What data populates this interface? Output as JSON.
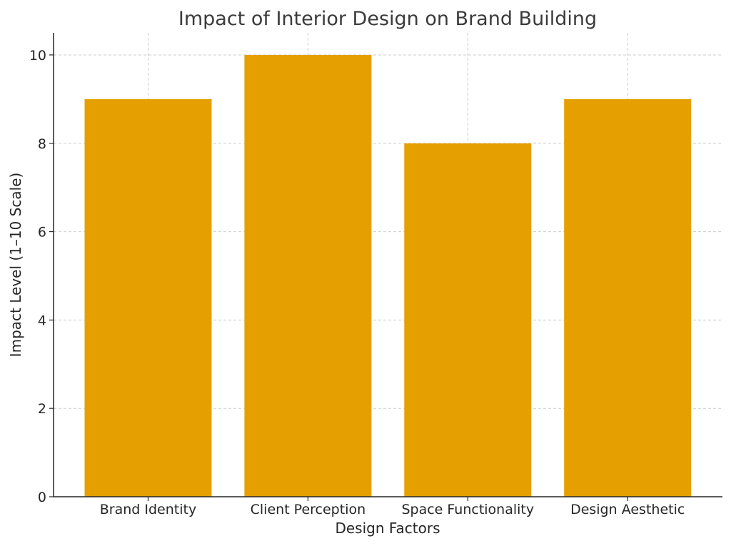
{
  "chart_data": {
    "type": "bar",
    "title": "Impact of Interior Design on Brand Building",
    "xlabel": "Design Factors",
    "ylabel": "Impact Level (1–10 Scale)",
    "categories": [
      "Brand Identity",
      "Client Perception",
      "Space Functionality",
      "Design Aesthetic"
    ],
    "values": [
      9,
      10,
      8,
      9
    ],
    "ylim": [
      0,
      10.5
    ],
    "yticks": [
      0,
      2,
      4,
      6,
      8,
      10
    ],
    "grid": true,
    "bar_color": "#e5a000"
  }
}
